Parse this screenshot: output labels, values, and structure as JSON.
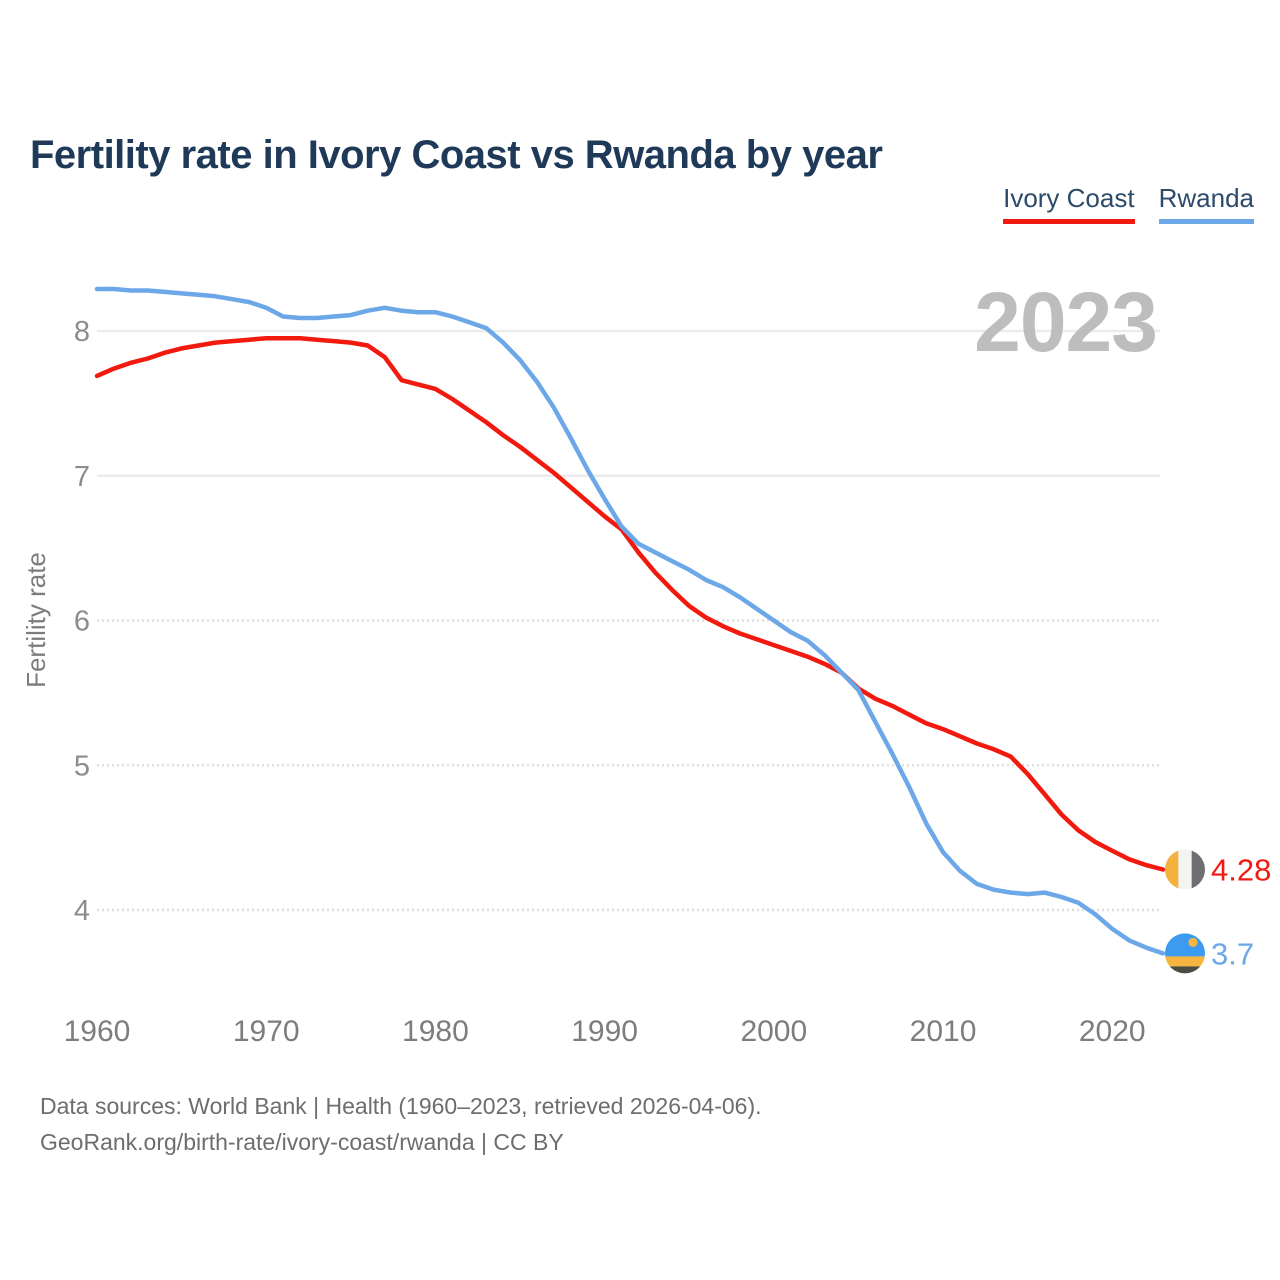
{
  "title": "Fertility rate in Ivory Coast vs Rwanda by year",
  "legend": [
    {
      "label": "Ivory Coast",
      "color": "#f2190f"
    },
    {
      "label": "Rwanda",
      "color": "#6ca7e8"
    }
  ],
  "watermark": "2023",
  "chart_data": {
    "type": "line",
    "title": "Fertility rate in Ivory Coast vs Rwanda by year",
    "xlabel": "",
    "ylabel": "Fertility rate",
    "x_range": [
      1960,
      2023
    ],
    "ylim": [
      3.4,
      8.45
    ],
    "grid": "horizontal",
    "legend_position": "top-right",
    "xticks": [
      1960,
      1970,
      1980,
      1990,
      2000,
      2010,
      2020
    ],
    "yticks": [
      4,
      5,
      6,
      7,
      8
    ],
    "x": [
      1960,
      1961,
      1962,
      1963,
      1964,
      1965,
      1966,
      1967,
      1968,
      1969,
      1970,
      1971,
      1972,
      1973,
      1974,
      1975,
      1976,
      1977,
      1978,
      1979,
      1980,
      1981,
      1982,
      1983,
      1984,
      1985,
      1986,
      1987,
      1988,
      1989,
      1990,
      1991,
      1992,
      1993,
      1994,
      1995,
      1996,
      1997,
      1998,
      1999,
      2000,
      2001,
      2002,
      2003,
      2004,
      2005,
      2006,
      2007,
      2008,
      2009,
      2010,
      2011,
      2012,
      2013,
      2014,
      2015,
      2016,
      2017,
      2018,
      2019,
      2020,
      2021,
      2022,
      2023
    ],
    "series": [
      {
        "name": "Ivory Coast",
        "color": "#f2190f",
        "end_label": "4.28",
        "flag": "ivory-coast",
        "values": [
          7.69,
          7.74,
          7.78,
          7.81,
          7.85,
          7.88,
          7.9,
          7.92,
          7.93,
          7.94,
          7.95,
          7.95,
          7.95,
          7.94,
          7.93,
          7.92,
          7.9,
          7.82,
          7.66,
          7.63,
          7.6,
          7.53,
          7.45,
          7.37,
          7.28,
          7.2,
          7.11,
          7.02,
          6.92,
          6.82,
          6.72,
          6.63,
          6.47,
          6.33,
          6.21,
          6.1,
          6.02,
          5.96,
          5.91,
          5.87,
          5.83,
          5.79,
          5.75,
          5.7,
          5.64,
          5.53,
          5.46,
          5.41,
          5.35,
          5.29,
          5.25,
          5.2,
          5.15,
          5.11,
          5.06,
          4.94,
          4.8,
          4.66,
          4.55,
          4.47,
          4.41,
          4.35,
          4.31,
          4.28
        ]
      },
      {
        "name": "Rwanda",
        "color": "#6ca7e8",
        "end_label": "3.7",
        "flag": "rwanda",
        "values": [
          8.29,
          8.29,
          8.28,
          8.28,
          8.27,
          8.26,
          8.25,
          8.24,
          8.22,
          8.2,
          8.16,
          8.1,
          8.09,
          8.09,
          8.1,
          8.11,
          8.14,
          8.16,
          8.14,
          8.13,
          8.13,
          8.1,
          8.06,
          8.02,
          7.92,
          7.8,
          7.65,
          7.47,
          7.26,
          7.04,
          6.84,
          6.65,
          6.53,
          6.47,
          6.41,
          6.35,
          6.28,
          6.23,
          6.16,
          6.08,
          6.0,
          5.92,
          5.86,
          5.76,
          5.64,
          5.52,
          5.3,
          5.08,
          4.85,
          4.6,
          4.4,
          4.27,
          4.18,
          4.14,
          4.12,
          4.11,
          4.12,
          4.09,
          4.05,
          3.97,
          3.87,
          3.79,
          3.74,
          3.7
        ]
      }
    ]
  },
  "icons": {
    "ivory_coast_flag": {
      "stripes": [
        "#F3B13D",
        "#F3F3F1",
        "#6D6E71"
      ]
    },
    "rwanda_flag": {
      "blue": "#3C9BF0",
      "yellow": "#F5B53F",
      "dark": "#4A4D44",
      "sun": "#F5B53F"
    }
  },
  "footer": {
    "line1": "Data sources: World Bank | Health (1960–2023, retrieved 2026-04-06).",
    "line2": "GeoRank.org/birth-rate/ivory-coast/rwanda | CC BY"
  }
}
